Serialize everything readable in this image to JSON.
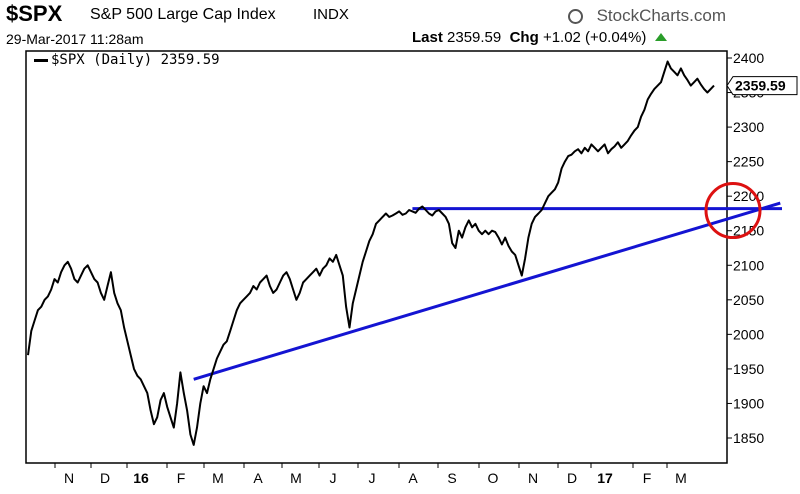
{
  "header": {
    "symbol": "$SPX",
    "description": "S&P 500 Large Cap Index",
    "exchange": "INDX",
    "brand": "StockCharts.com",
    "brand_icon": "gear-icon",
    "date": "29-Mar-2017 11:28am",
    "last_label": "Last",
    "last_value": "2359.59",
    "chg_label": "Chg",
    "chg_value": "+1.02 (+0.04%)",
    "chg_icon": "up-arrow-icon",
    "up_color": "#2a9d2a"
  },
  "legend": {
    "label": "$SPX (Daily) 2359.59"
  },
  "colors": {
    "price": "#000000",
    "trendline": "#1414d2",
    "circle": "#dd1111"
  },
  "chart_data": {
    "type": "line",
    "title": "$SPX S&P 500 Large Cap Index INDX",
    "ylim": [
      1820,
      2420
    ],
    "y_ticks": [
      1850,
      1900,
      1950,
      2000,
      2050,
      2100,
      2150,
      2200,
      2250,
      2300,
      2350,
      2400
    ],
    "x_ticks": [
      {
        "label": "N",
        "bold": false
      },
      {
        "label": "D",
        "bold": false
      },
      {
        "label": "16",
        "bold": true
      },
      {
        "label": "F",
        "bold": false
      },
      {
        "label": "M",
        "bold": false
      },
      {
        "label": "A",
        "bold": false
      },
      {
        "label": "M",
        "bold": false
      },
      {
        "label": "J",
        "bold": false
      },
      {
        "label": "J",
        "bold": false
      },
      {
        "label": "A",
        "bold": false
      },
      {
        "label": "S",
        "bold": false
      },
      {
        "label": "O",
        "bold": false
      },
      {
        "label": "N",
        "bold": false
      },
      {
        "label": "D",
        "bold": false
      },
      {
        "label": "17",
        "bold": true
      },
      {
        "label": "F",
        "bold": false
      },
      {
        "label": "M",
        "bold": false
      }
    ],
    "last_value_label": "2359.59",
    "series": [
      {
        "name": "$SPX (Daily)",
        "values": [
          1970,
          2005,
          2020,
          2035,
          2040,
          2050,
          2055,
          2065,
          2080,
          2075,
          2090,
          2100,
          2105,
          2095,
          2080,
          2075,
          2085,
          2095,
          2100,
          2090,
          2080,
          2075,
          2060,
          2050,
          2070,
          2090,
          2060,
          2045,
          2035,
          2010,
          1990,
          1970,
          1950,
          1940,
          1935,
          1925,
          1915,
          1890,
          1870,
          1880,
          1905,
          1915,
          1895,
          1880,
          1865,
          1900,
          1945,
          1915,
          1890,
          1855,
          1840,
          1865,
          1900,
          1925,
          1915,
          1935,
          1950,
          1965,
          1975,
          1985,
          1990,
          2005,
          2020,
          2035,
          2045,
          2050,
          2055,
          2060,
          2070,
          2065,
          2075,
          2080,
          2085,
          2070,
          2060,
          2065,
          2075,
          2085,
          2090,
          2080,
          2065,
          2050,
          2060,
          2075,
          2080,
          2085,
          2090,
          2095,
          2085,
          2095,
          2100,
          2110,
          2105,
          2115,
          2100,
          2085,
          2040,
          2010,
          2045,
          2065,
          2085,
          2105,
          2120,
          2135,
          2145,
          2160,
          2165,
          2170,
          2175,
          2170,
          2172,
          2175,
          2178,
          2173,
          2175,
          2180,
          2178,
          2176,
          2182,
          2185,
          2180,
          2175,
          2172,
          2178,
          2180,
          2175,
          2170,
          2160,
          2132,
          2125,
          2150,
          2140,
          2155,
          2165,
          2155,
          2160,
          2150,
          2145,
          2150,
          2145,
          2150,
          2148,
          2140,
          2130,
          2140,
          2128,
          2120,
          2115,
          2100,
          2085,
          2110,
          2140,
          2160,
          2170,
          2175,
          2180,
          2190,
          2200,
          2205,
          2210,
          2220,
          2240,
          2250,
          2258,
          2260,
          2265,
          2268,
          2262,
          2270,
          2265,
          2275,
          2270,
          2265,
          2270,
          2275,
          2262,
          2268,
          2272,
          2278,
          2270,
          2275,
          2280,
          2288,
          2295,
          2300,
          2315,
          2325,
          2340,
          2348,
          2355,
          2360,
          2365,
          2380,
          2395,
          2385,
          2380,
          2375,
          2385,
          2375,
          2368,
          2360,
          2365,
          2370,
          2362,
          2355,
          2350,
          2355,
          2360
        ]
      }
    ],
    "horizontal_line": {
      "y": 2182,
      "x_start_index": 116
    },
    "trendline": {
      "points": [
        {
          "index": 50,
          "y": 1935
        },
        {
          "index": 227,
          "y": 2190
        }
      ]
    },
    "circle_annotation": {
      "index": 218,
      "y": 2185
    },
    "grid": false
  }
}
